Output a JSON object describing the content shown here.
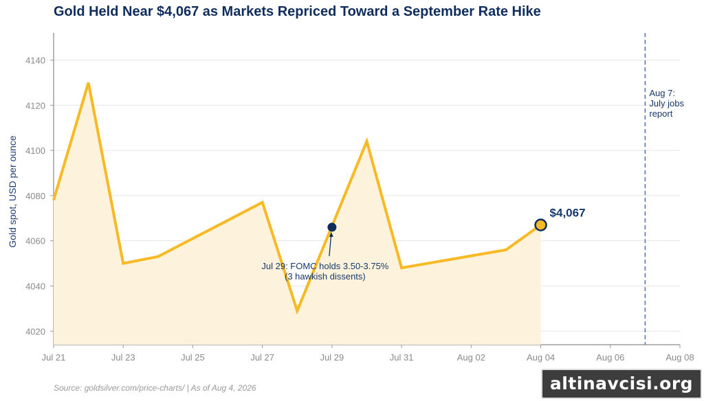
{
  "title": "Gold Held Near $4,067 as Markets Repriced Toward a September Rate Hike",
  "source": "Source: goldsilver.com/price-charts/  |  As of Aug 4, 2026",
  "watermark": "altinavcisi.org",
  "colors": {
    "line": "#f7b924",
    "fill": "#fdf3dc",
    "navy": "#0f2d5c",
    "grid": "#e6e6e6",
    "event_line": "#5a78b0"
  },
  "chart_data": {
    "type": "line",
    "title": "Gold Held Near $4,067 as Markets Repriced Toward a September Rate Hike",
    "ylabel": "Gold spot, USD per ounce",
    "xlabel": "",
    "ylim": [
      4014,
      4152
    ],
    "xlim": [
      "2026-07-21",
      "2026-08-08"
    ],
    "y_ticks": [
      4020,
      4040,
      4060,
      4080,
      4100,
      4120,
      4140
    ],
    "x_ticks": [
      {
        "date": "2026-07-21",
        "label": "Jul 21"
      },
      {
        "date": "2026-07-23",
        "label": "Jul 23"
      },
      {
        "date": "2026-07-25",
        "label": "Jul 25"
      },
      {
        "date": "2026-07-27",
        "label": "Jul 27"
      },
      {
        "date": "2026-07-29",
        "label": "Jul 29"
      },
      {
        "date": "2026-07-31",
        "label": "Jul 31"
      },
      {
        "date": "2026-08-02",
        "label": "Aug 02"
      },
      {
        "date": "2026-08-04",
        "label": "Aug 04"
      },
      {
        "date": "2026-08-06",
        "label": "Aug 06"
      },
      {
        "date": "2026-08-08",
        "label": "Aug 08"
      }
    ],
    "grid": true,
    "series": [
      {
        "points": [
          {
            "x": "2026-07-21",
            "y": 4078
          },
          {
            "x": "2026-07-22",
            "y": 4130
          },
          {
            "x": "2026-07-23",
            "y": 4050
          },
          {
            "x": "2026-07-24",
            "y": 4053
          },
          {
            "x": "2026-07-27",
            "y": 4077
          },
          {
            "x": "2026-07-28",
            "y": 4029
          },
          {
            "x": "2026-07-30",
            "y": 4104
          },
          {
            "x": "2026-07-31",
            "y": 4048
          },
          {
            "x": "2026-08-03",
            "y": 4056
          },
          {
            "x": "2026-08-04",
            "y": 4067
          }
        ]
      }
    ],
    "last_value_label": "$4,067",
    "annotations": [
      {
        "x": "2026-07-29",
        "y": 4066,
        "lines": [
          "Jul 29: FOMC holds 3.50-3.75%",
          "(3 hawkish dissents)"
        ]
      }
    ],
    "event_lines": [
      {
        "x": "2026-08-07",
        "lines": [
          "Aug 7:",
          "July jobs",
          "report"
        ]
      }
    ]
  }
}
